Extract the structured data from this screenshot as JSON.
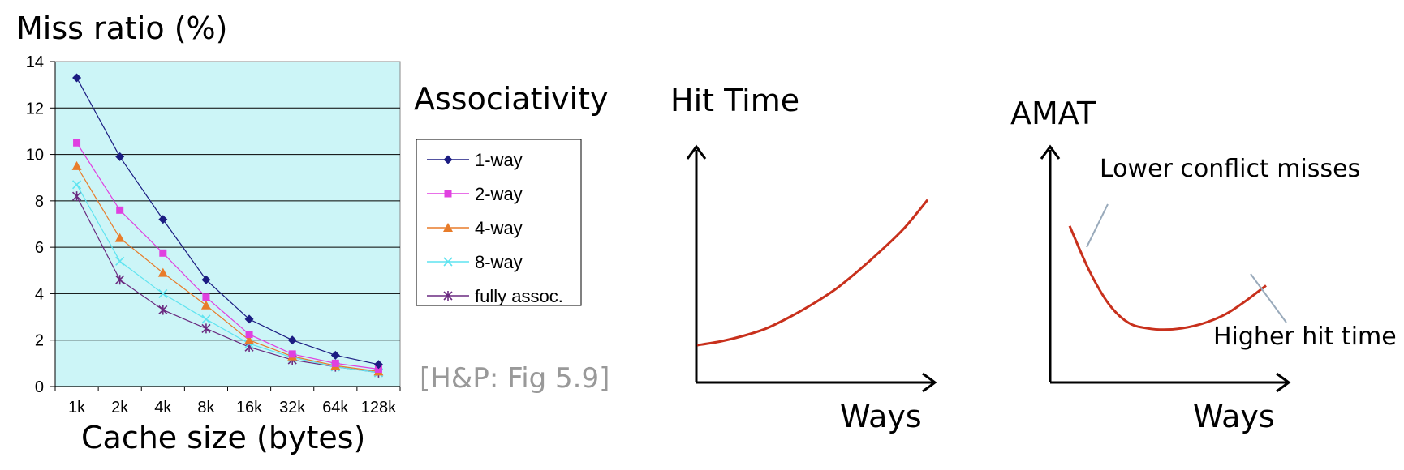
{
  "chart_data": [
    {
      "type": "line",
      "title": "",
      "ylabel": "Miss ratio (%)",
      "xlabel": "Cache size (bytes)",
      "categories": [
        "1k",
        "2k",
        "4k",
        "8k",
        "16k",
        "32k",
        "64k",
        "128k"
      ],
      "ylim": [
        0,
        14
      ],
      "yticks": [
        "0",
        "2",
        "4",
        "6",
        "8",
        "10",
        "12",
        "14"
      ],
      "grid": true,
      "background": "#ccf5f7",
      "legend_title": "Associativity",
      "legend_position": "right",
      "series": [
        {
          "name": "1-way",
          "values": [
            13.3,
            9.9,
            7.2,
            4.6,
            2.9,
            2.0,
            1.35,
            0.95
          ],
          "color": "#1b1c82",
          "marker": "diamond"
        },
        {
          "name": "2-way",
          "values": [
            10.5,
            7.6,
            5.75,
            3.85,
            2.25,
            1.4,
            1.0,
            0.75
          ],
          "color": "#e040e0",
          "marker": "square"
        },
        {
          "name": "4-way",
          "values": [
            9.5,
            6.4,
            4.9,
            3.5,
            2.0,
            1.3,
            0.9,
            0.65
          ],
          "color": "#e87c2a",
          "marker": "triangle"
        },
        {
          "name": "8-way",
          "values": [
            8.7,
            5.4,
            4.0,
            2.9,
            1.85,
            1.25,
            0.85,
            0.6
          ],
          "color": "#5fe4f0",
          "marker": "x"
        },
        {
          "name": "fully assoc.",
          "values": [
            8.2,
            4.6,
            3.3,
            2.5,
            1.7,
            1.15,
            0.85,
            0.6
          ],
          "color": "#6a2a80",
          "marker": "star"
        }
      ],
      "citation": "[H&P: Fig 5.9]"
    },
    {
      "type": "line",
      "title": "",
      "ylabel": "Hit Time",
      "xlabel": "Ways",
      "x": [
        0,
        1,
        2,
        3,
        4,
        5,
        6,
        7,
        8,
        9,
        10
      ],
      "values": [
        1.0,
        1.1,
        1.25,
        1.45,
        1.75,
        2.1,
        2.5,
        3.0,
        3.55,
        4.15,
        4.9
      ],
      "color": "#c8301c",
      "ylim": [
        0,
        6
      ]
    },
    {
      "type": "line",
      "title": "",
      "ylabel": "AMAT",
      "xlabel": "Ways",
      "x": [
        0,
        1,
        2,
        3,
        4,
        5,
        6,
        7,
        8,
        9,
        10
      ],
      "values": [
        4.2,
        3.0,
        2.1,
        1.6,
        1.45,
        1.42,
        1.48,
        1.62,
        1.85,
        2.2,
        2.6
      ],
      "color": "#c8301c",
      "ylim": [
        0,
        6
      ],
      "annotations": [
        "Lower conflict misses",
        "Higher hit time"
      ]
    }
  ]
}
